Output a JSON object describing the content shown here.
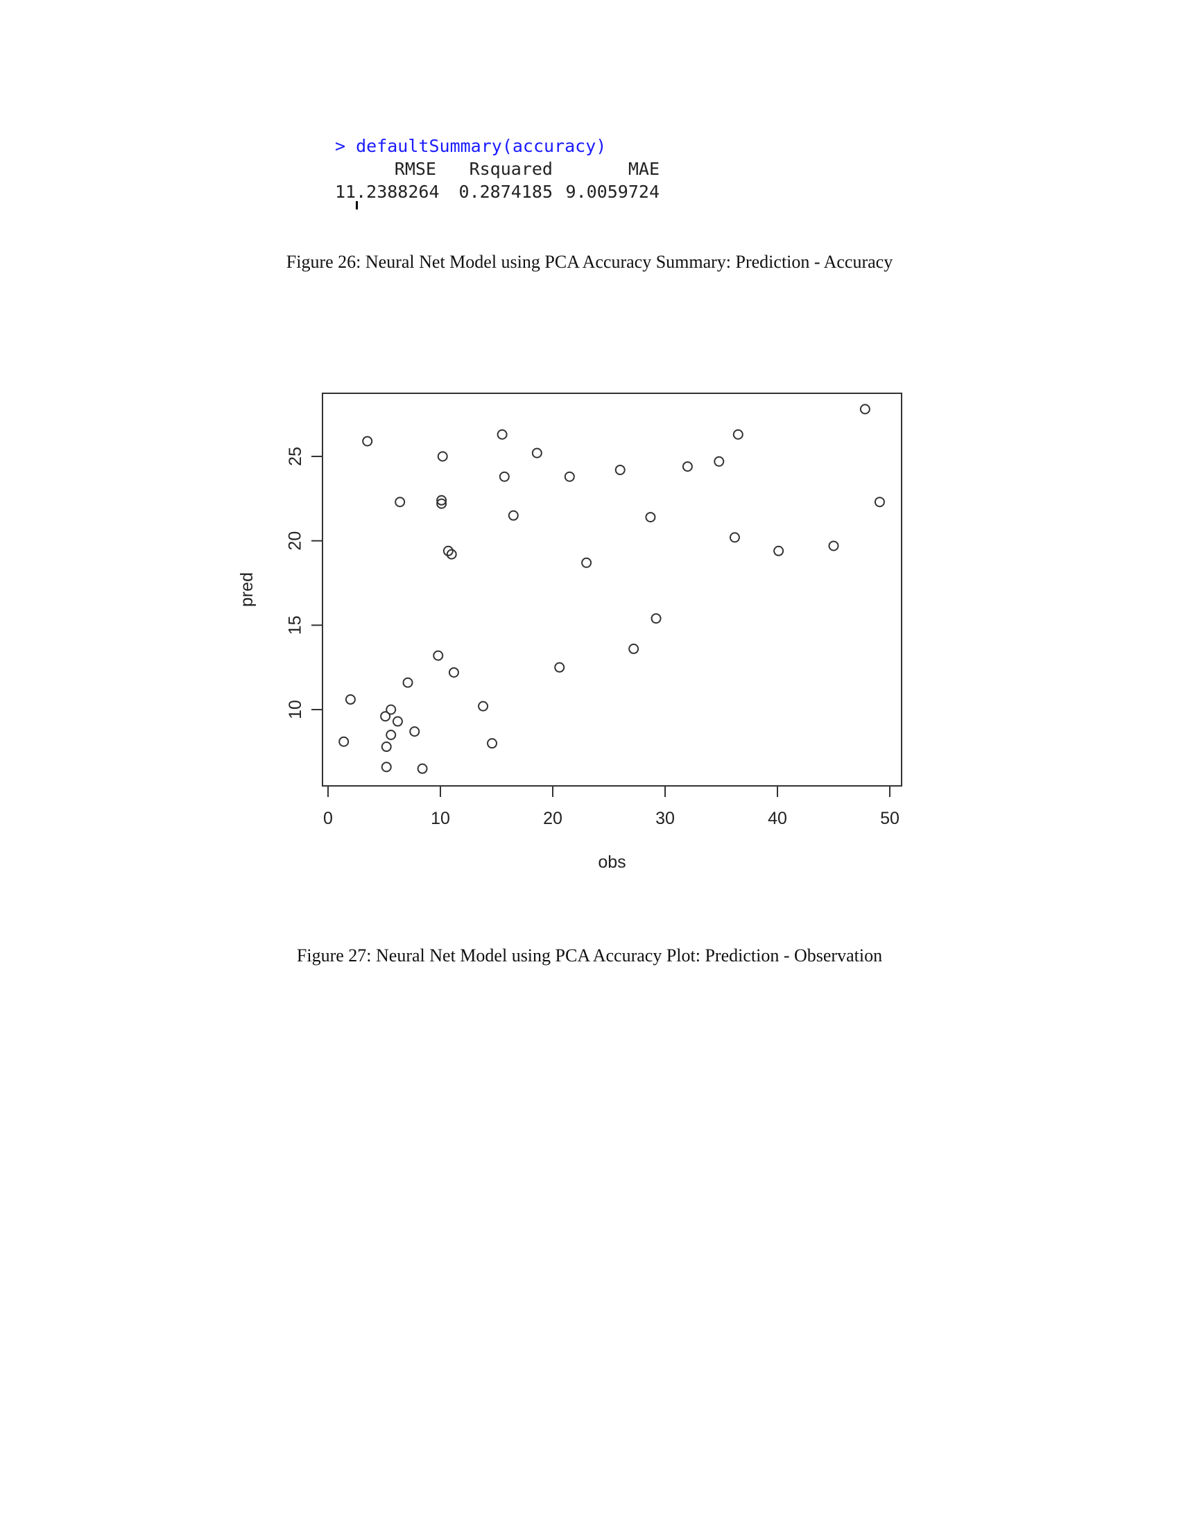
{
  "console": {
    "command": "> defaultSummary(accuracy)",
    "headers": [
      "RMSE",
      "Rsquared",
      "MAE"
    ],
    "values": [
      "11.2388264",
      "0.2874185",
      "9.0059724"
    ]
  },
  "figure26_caption": "Figure 26: Neural Net Model using PCA Accuracy Summary: Prediction - Accuracy",
  "figure27_caption": "Figure 27: Neural Net Model using PCA Accuracy Plot: Prediction - Observation",
  "chart_data": {
    "type": "scatter",
    "xlabel": "obs",
    "ylabel": "pred",
    "xlim": [
      0,
      50
    ],
    "ylim": [
      5.5,
      28.5
    ],
    "xticks": [
      0,
      10,
      20,
      30,
      40,
      50
    ],
    "yticks": [
      10,
      15,
      20,
      25
    ],
    "grid": false,
    "points": [
      [
        1.4,
        8.1
      ],
      [
        2.0,
        10.6
      ],
      [
        3.5,
        25.9
      ],
      [
        5.1,
        9.6
      ],
      [
        5.2,
        7.8
      ],
      [
        5.2,
        6.6
      ],
      [
        5.6,
        10.0
      ],
      [
        5.6,
        8.5
      ],
      [
        6.2,
        9.3
      ],
      [
        6.4,
        22.3
      ],
      [
        7.1,
        11.6
      ],
      [
        7.7,
        8.7
      ],
      [
        8.4,
        6.5
      ],
      [
        9.8,
        13.2
      ],
      [
        10.1,
        22.4
      ],
      [
        10.1,
        22.2
      ],
      [
        10.2,
        25.0
      ],
      [
        10.7,
        19.4
      ],
      [
        11.0,
        19.2
      ],
      [
        11.2,
        12.2
      ],
      [
        13.8,
        10.2
      ],
      [
        14.6,
        8.0
      ],
      [
        15.5,
        26.3
      ],
      [
        15.7,
        23.8
      ],
      [
        16.5,
        21.5
      ],
      [
        18.6,
        25.2
      ],
      [
        20.6,
        12.5
      ],
      [
        21.5,
        23.8
      ],
      [
        23.0,
        18.7
      ],
      [
        26.0,
        24.2
      ],
      [
        27.2,
        13.6
      ],
      [
        28.7,
        21.4
      ],
      [
        29.2,
        15.4
      ],
      [
        32.0,
        24.4
      ],
      [
        34.8,
        24.7
      ],
      [
        36.2,
        20.2
      ],
      [
        36.5,
        26.3
      ],
      [
        40.1,
        19.4
      ],
      [
        45.0,
        19.7
      ],
      [
        47.8,
        27.8
      ],
      [
        49.1,
        22.3
      ]
    ]
  }
}
